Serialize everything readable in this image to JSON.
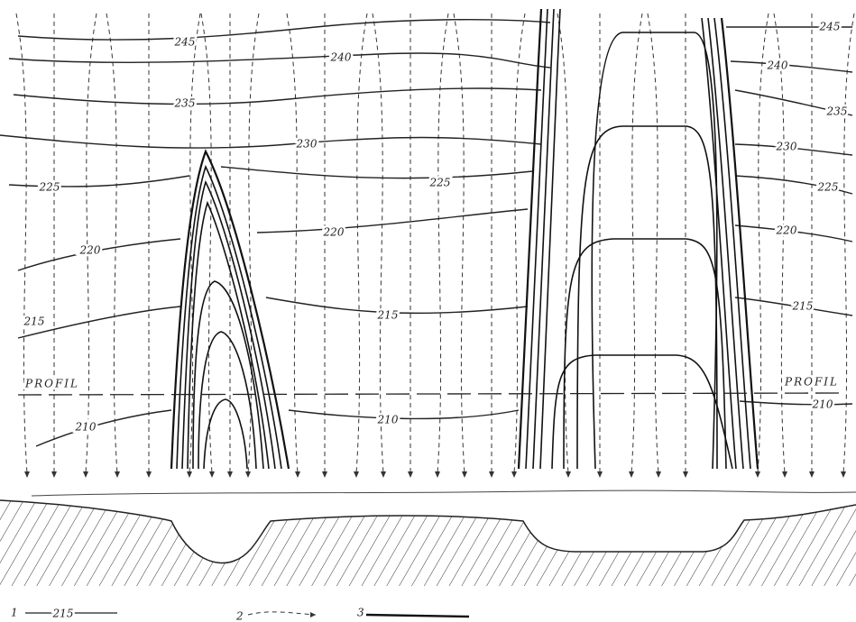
{
  "contour_labels": [
    "245",
    "240",
    "235",
    "230",
    "225",
    "225",
    "220",
    "220",
    "215",
    "215",
    "210",
    "210",
    "245",
    "240",
    "235",
    "230",
    "225",
    "220",
    "215",
    "210"
  ],
  "profile_labels": [
    "PROFIL",
    "PROFIL"
  ],
  "legend": [
    {
      "number": "1",
      "sample": "215"
    },
    {
      "number": "2"
    },
    {
      "number": "3"
    }
  ]
}
